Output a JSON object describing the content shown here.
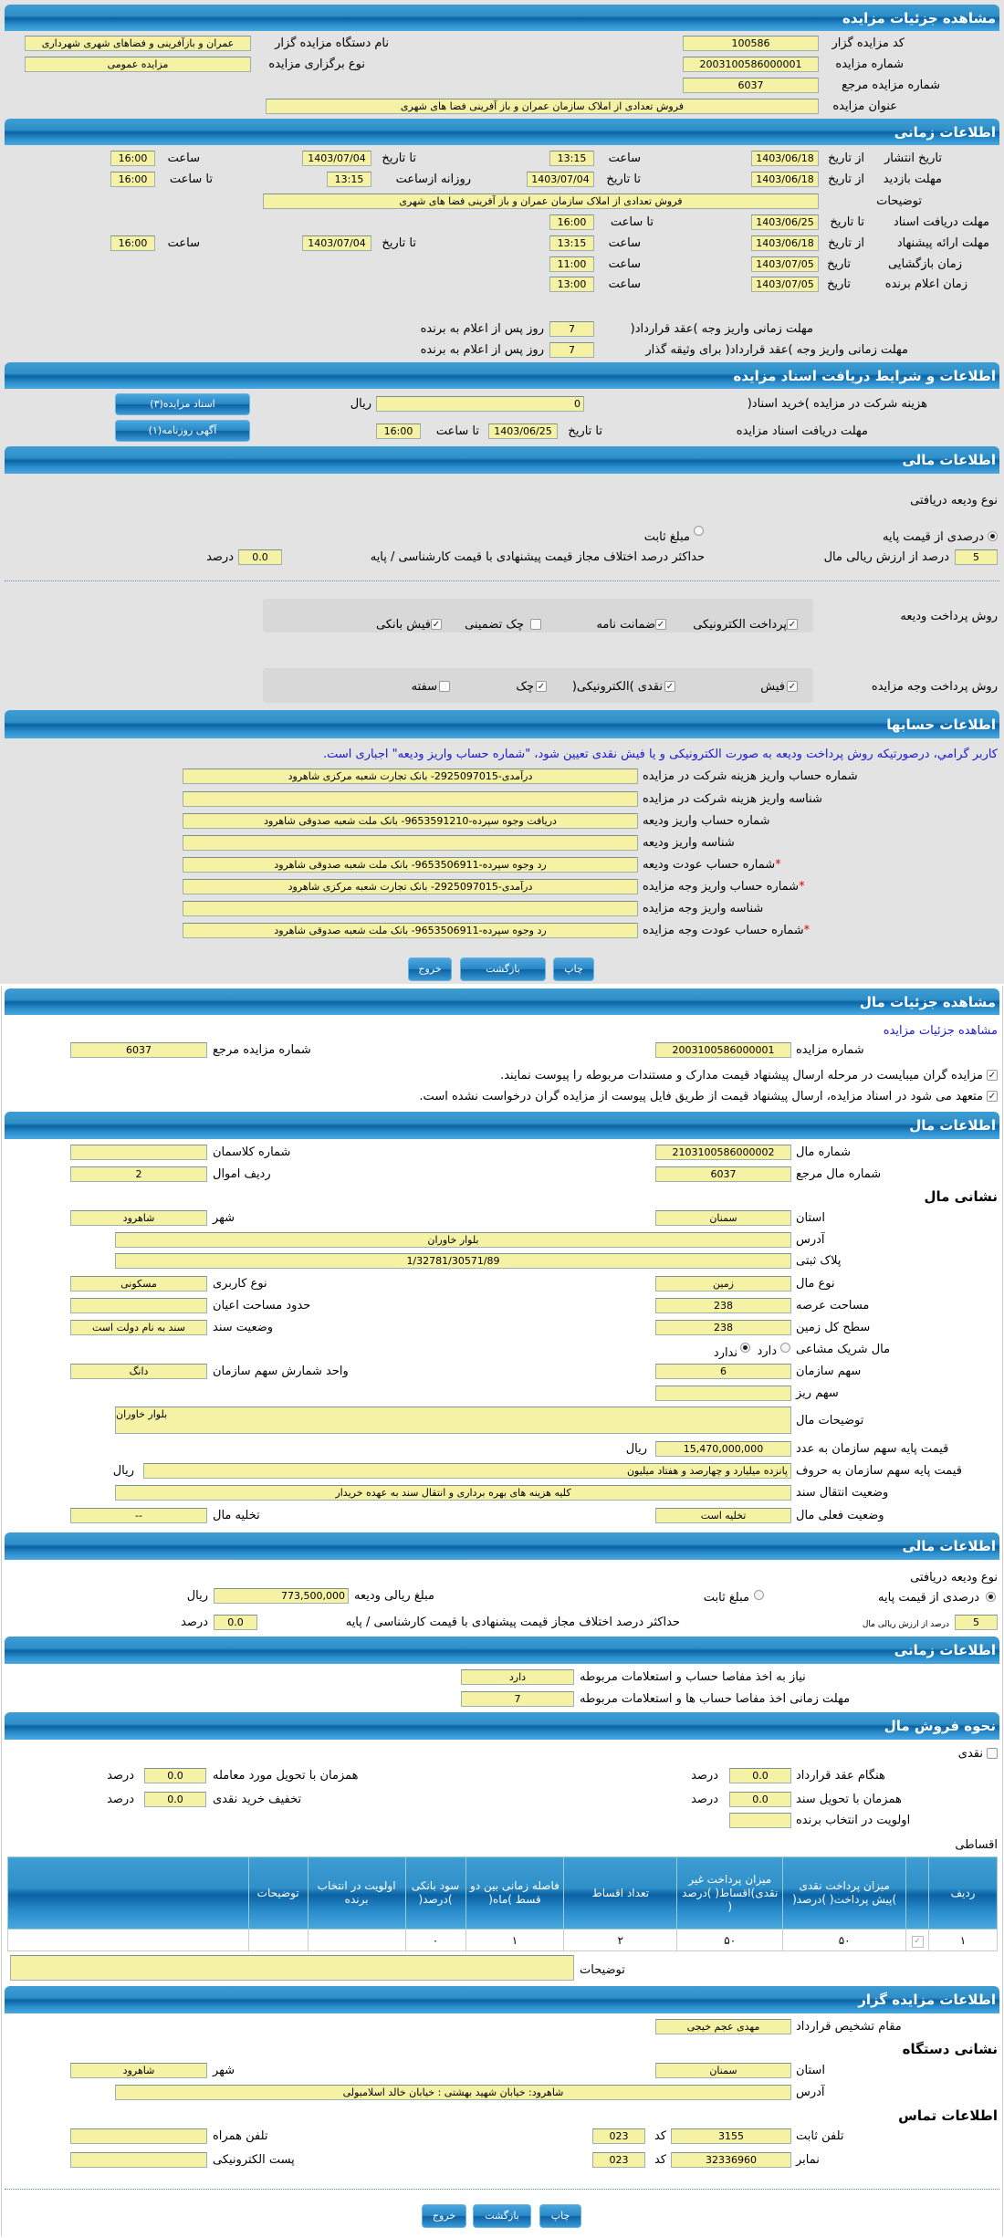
{
  "auction_details": {
    "title": "مشاهده جزئیات مزایده",
    "organizer_code": {
      "label": "کد مزایده گزار",
      "value": "100586"
    },
    "organizer_name": {
      "label": "نام دستگاه مزایده گزار",
      "value": "عمران و بازآفرینی و فضاهای شهری شهرداری"
    },
    "auction_number": {
      "label": "شماره مزایده",
      "value": "2003100586000001"
    },
    "auction_type": {
      "label": "نوع برگزاری مزایده",
      "value": "مزایده عمومی"
    },
    "reference_number": {
      "label": "شماره مزایده مرجع",
      "value": "6037"
    },
    "auction_title": {
      "label": "عنوان مزایده",
      "value": "فروش تعدادی از املاک سازمان عمران و باز آفرینی فضا های شهری"
    }
  },
  "timing": {
    "title": "اطلاعات زمانی",
    "publish": {
      "label": "تاریخ انتشار",
      "from_label": "از تاریخ",
      "from_date": "1403/06/18",
      "time_label": "ساعت",
      "from_time": "13:15",
      "to_label": "تا تاریخ",
      "to_date": "1403/07/04",
      "to_time_label": "ساعت",
      "to_time": "16:00"
    },
    "visit": {
      "label": "مهلت بازدید",
      "from_label": "از تاریخ",
      "from_date": "1403/06/18",
      "to_label": "تا تاریخ",
      "to_date": "1403/07/04",
      "daily_label": "روزانه ازساعت",
      "daily_from": "13:15",
      "to_time_label": "تا ساعت",
      "to_time": "16:00"
    },
    "description": {
      "label": "توضیحات",
      "value": "فروش تعدادی از املاک سازمان عمران و باز آفرینی فضا های شهری"
    },
    "docs": {
      "label": "مهلت دریافت اسناد",
      "to_label": "تا تاریخ",
      "to_date": "1403/06/25",
      "time_label": "تا ساعت",
      "time": "16:00"
    },
    "offer": {
      "label": "مهلت ارائه پیشنهاد",
      "from_label": "از تاریخ",
      "from_date": "1403/06/18",
      "time_label": "ساعت",
      "from_time": "13:15",
      "to_label": "تا تاریخ",
      "to_date": "1403/07/04",
      "to_time_label": "ساعت",
      "to_time": "16:00"
    },
    "opening": {
      "label": "زمان بازگشایی",
      "date_label": "تاریخ",
      "date": "1403/07/05",
      "time_label": "ساعت",
      "time": "11:00"
    },
    "winner": {
      "label": "زمان اعلام برنده",
      "date_label": "تاریخ",
      "date": "1403/07/05",
      "time_label": "ساعت",
      "time": "13:00"
    },
    "contract_deadline": {
      "label": "مهلت زمانی واریز وجه )عقد قرارداد(",
      "value": "7",
      "suffix": "روز پس از اعلام به برنده"
    },
    "guarantor_deadline": {
      "label": "مهلت زمانی واریز وجه )عقد قرارداد( برای وثیقه گذار",
      "value": "7",
      "suffix": "روز پس از اعلام به برنده"
    }
  },
  "documents": {
    "title": "اطلاعات و شرایط دریافت اسناد مزایده",
    "fee": {
      "label": "هزینه شرکت در مزایده )خرید اسناد(",
      "value": "0",
      "unit": "ریال"
    },
    "deadline": {
      "label": "مهلت دریافت اسناد مزایده",
      "to_label": "تا تاریخ",
      "date": "1403/06/25",
      "time_label": "تا ساعت",
      "time": "16:00"
    },
    "docs_button": "اسناد مزایده(۳)",
    "ad_button": "آگهی روزنامه(۱)"
  },
  "financial": {
    "title": "اطلاعات مالی",
    "deposit_type_label": "نوع ودیعه دریافتی",
    "percent_option": "درصدی از قیمت پایه",
    "fixed_option": "مبلغ ثابت",
    "selected": "percent",
    "percent_value": "5",
    "percent_suffix": "درصد از ارزش ریالی مال",
    "max_diff_label": "حداکثر درصد اختلاف مجاز قیمت پیشنهادی با قیمت کارشناسی / پایه",
    "max_diff_value": "0.0",
    "max_diff_unit": "درصد",
    "deposit_methods_label": "روش پرداخت ودیعه",
    "deposit_methods": [
      {
        "label": "پرداخت الکترونیکی",
        "checked": true
      },
      {
        "label": "ضمانت نامه",
        "checked": true
      },
      {
        "label": "چک تضمینی",
        "checked": false
      },
      {
        "label": "فیش بانکی",
        "checked": true
      }
    ],
    "payment_methods_label": "روش پرداخت وجه مزایده",
    "payment_methods": [
      {
        "label": "فیش",
        "checked": true
      },
      {
        "label": "نقدی )الکترونیکی(",
        "checked": true
      },
      {
        "label": "چک",
        "checked": true
      },
      {
        "label": "سفته",
        "checked": false
      }
    ]
  },
  "accounts": {
    "title": "اطلاعات حسابها",
    "required_mark": "*",
    "notice": "کاربر گرامي، درصورتیکه روش پرداخت ودیعه به صورت الکترونیکی و یا فیش نقدی تعیین شود، \"شماره حساب واریز ودیعه\" اجباری است.",
    "rows": [
      {
        "label": "شماره حساب واریز هزینه شرکت در مزایده",
        "value": "درآمدی-2925097015- بانک تجارت شعبه مرکزی شاهرود",
        "required": false
      },
      {
        "label": "شناسه واریز هزینه شرکت در مزایده",
        "value": "",
        "required": false
      },
      {
        "label": "شماره حساب واریز ودیعه",
        "value": "دریافت وجوه سپرده-9653591210- بانک ملت شعبه صدوقی شاهرود",
        "required": false
      },
      {
        "label": "شناسه واریز ودیعه",
        "value": "",
        "required": false
      },
      {
        "label": "شماره حساب عودت ودیعه",
        "value": "رد وجوه سپرده-9653506911- بانک ملت شعبه صدوقی شاهرود",
        "required": true
      },
      {
        "label": "شماره حساب واریز وجه مزایده",
        "value": "درآمدی-2925097015- بانک تجارت شعبه مرکزی شاهرود",
        "required": true
      },
      {
        "label": "شناسه واریز وجه مزایده",
        "value": "",
        "required": false
      },
      {
        "label": "شماره حساب عودت وجه مزایده",
        "value": "رد وجوه سپرده-9653506911- بانک ملت شعبه صدوقی شاهرود",
        "required": true
      }
    ]
  },
  "buttons": {
    "print": "چاپ",
    "back": "بازگشت",
    "exit": "خروج"
  },
  "item_details": {
    "title": "مشاهده جزئیات مال",
    "link": "مشاهده جزئیات مزایده",
    "auction_number": {
      "label": "شماره مزایده",
      "value": "2003100586000001"
    },
    "reference_number": {
      "label": "شماره مزایده مرجع",
      "value": "6037"
    },
    "confirm1": {
      "label": "مزایده گران میبایست در مرحله ارسال پیشنهاد قیمت مدارک و مستندات مربوطه را پیوست نمایند.",
      "checked": true
    },
    "confirm2": {
      "label": "متعهد می شود در اسناد مزایده، ارسال پیشنهاد قیمت از طریق فایل پیوست از مزایده گران درخواست نشده است.",
      "checked": true
    }
  },
  "item_info": {
    "title": "اطلاعات مال",
    "item_number": {
      "label": "شماره مال",
      "value": "2103100586000002"
    },
    "cadastral": {
      "label": "شماره کلاسمان",
      "value": ""
    },
    "item_ref": {
      "label": "شماره مال مرجع",
      "value": "6037"
    },
    "row_no": {
      "label": "ردیف اموال",
      "value": "2"
    },
    "address_title": "نشانی مال",
    "province": {
      "label": "استان",
      "value": "سمنان"
    },
    "city": {
      "label": "شهر",
      "value": "شاهرود"
    },
    "address": {
      "label": "آدرس",
      "value": "بلوار خاوران"
    },
    "plate": {
      "label": "پلاک ثبتی",
      "value": "1/32781/30571/89"
    },
    "item_type": {
      "label": "نوع مال",
      "value": "زمین"
    },
    "usage": {
      "label": "نوع کاربری",
      "value": "مسکونی"
    },
    "land_area": {
      "label": "مساحت عرصه",
      "value": "238"
    },
    "building_area": {
      "label": "حدود مساحت اعیان",
      "value": ""
    },
    "total_area": {
      "label": "سطح کل زمین",
      "value": "238"
    },
    "deed_status": {
      "label": "وضعیت سند",
      "value": "سند به نام دولت است"
    },
    "shared": {
      "label": "مال شریک مشاعی",
      "yes": "دارد",
      "no": "ندارد",
      "selected": "no"
    },
    "org_share": {
      "label": "سهم سازمان",
      "value": "6"
    },
    "share_unit": {
      "label": "واحد شمارش سهم سازمان",
      "value": "دانگ"
    },
    "small_share": {
      "label": "سهم ریز",
      "value": ""
    },
    "description": {
      "label": "توضیحات مال",
      "value": "بلوار خاوران"
    },
    "base_price_num": {
      "label": "قیمت پایه سهم سازمان به عدد",
      "value": "15,470,000,000",
      "unit": "ریال"
    },
    "base_price_words": {
      "label": "قیمت پایه سهم سازمان به حروف",
      "value": "پانزده میلیارد و چهارصد و هفتاد میلیون",
      "unit": "ریال"
    },
    "transfer": {
      "label": "وضعیت انتقال سند",
      "value": "کلیه هزینه های بهره برداری و انتقال سند به عهده خریدار"
    },
    "current_status": {
      "label": "وضعیت فعلی مال",
      "value": "تخلیه است"
    },
    "vacate": {
      "label": "تخلیه مال",
      "value": "--"
    }
  },
  "item_financial": {
    "title": "اطلاعات مالی",
    "deposit_type_label": "نوع ودیعه دریافتی",
    "percent_option": "درصدی از قیمت پایه",
    "fixed_option": "مبلغ ثابت",
    "selected": "percent",
    "deposit_amount": {
      "label": "مبلغ ریالی ودیعه",
      "value": "773,500,000",
      "unit": "ریال"
    },
    "percent_value": "5",
    "percent_suffix": "درصد از ارزش ریالی مال",
    "max_diff_label": "حداکثر درصد اختلاف مجاز قیمت پیشنهادی با قیمت کارشناسی / پایه",
    "max_diff_value": "0.0",
    "max_diff_unit": "درصد"
  },
  "item_timing": {
    "title": "اطلاعات زمانی",
    "clearance": {
      "label": "نیاز به اخذ مفاصا حساب و استعلامات مربوطه",
      "value": "دارد"
    },
    "clearance_deadline": {
      "label": "مهلت زمانی اخذ مفاصا حساب ها و استعلامات مربوطه",
      "value": "7"
    }
  },
  "sale": {
    "title": "نحوه فروش مال",
    "cash_label": "نقدی",
    "cash_checked": false,
    "contract": {
      "label": "هنگام عقد قرارداد",
      "value": "0.0",
      "unit": "درصد"
    },
    "delivery_item": {
      "label": "همزمان با تحویل مورد معامله",
      "value": "0.0",
      "unit": "درصد"
    },
    "delivery_deed": {
      "label": "همزمان با تحویل سند",
      "value": "0.0",
      "unit": "درصد"
    },
    "cash_discount": {
      "label": "تخفیف خرید نقدی",
      "value": "0.0",
      "unit": "درصد"
    },
    "priority": {
      "label": "اولویت در انتخاب برنده",
      "value": ""
    },
    "installment_label": "اقساطی",
    "table": {
      "columns": [
        "ردیف",
        "",
        "میزان پرداخت نقدی )پیش پرداخت( )درصد(",
        "میزان پرداخت غیر نقدی)اقساط( )درصد (",
        "تعداد اقساط",
        "فاصله زمانی بین دو قسط )ماه(",
        "سود بانکی )درصد(",
        "اولویت در انتخاب برنده",
        "توضیحات",
        ""
      ],
      "rows": [
        {
          "cells": [
            "۱",
            "",
            "۵۰",
            "۵۰",
            "۲",
            "۱",
            "۰",
            "",
            "",
            ""
          ],
          "checked": true
        }
      ]
    },
    "notes": {
      "label": "توضیحات",
      "value": ""
    }
  },
  "organizer": {
    "title": "اطلاعات مزایده گزار",
    "authority": {
      "label": "مقام تشخیص قرارداد",
      "value": "مهدی عجم خیجی"
    },
    "address_title": "نشانی دستگاه",
    "province": {
      "label": "استان",
      "value": "سمنان"
    },
    "city": {
      "label": "شهر",
      "value": "شاهرود"
    },
    "address": {
      "label": "آدرس",
      "value": "شاهرود: خیابان شهید بهشتی : خیابان خالد اسلامبولی"
    },
    "contact_title": "اطلاعات تماس",
    "phone": {
      "label": "تلفن ثابت",
      "value": "3155",
      "code_label": "کد",
      "code": "023"
    },
    "mobile": {
      "label": "تلفن همراه",
      "value": ""
    },
    "fax": {
      "label": "نمابر",
      "value": "32336960",
      "code_label": "کد",
      "code": "023"
    },
    "email": {
      "label": "پست الکترونیکی",
      "value": ""
    }
  },
  "colors": {
    "header_blue": "#0b62a3",
    "field_yellow": "#f6f2a5",
    "notice_blue": "#1a1ad0",
    "required_red": "#e00000"
  }
}
